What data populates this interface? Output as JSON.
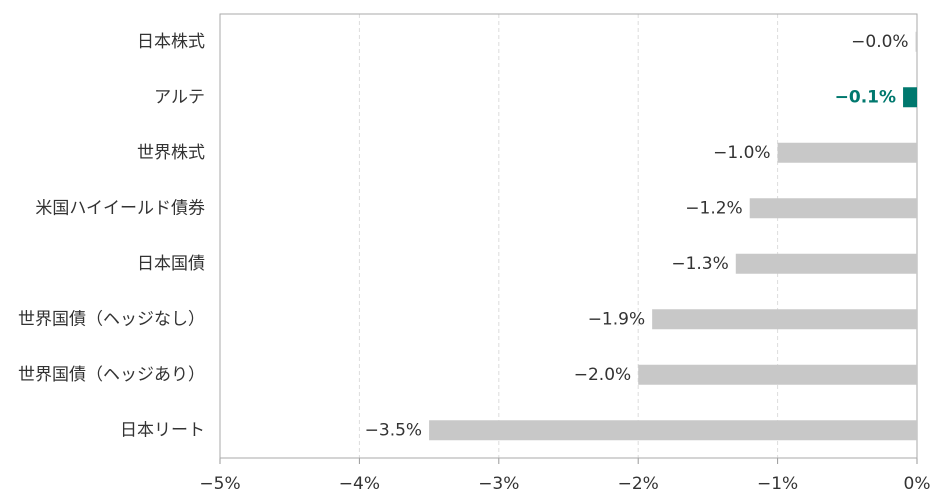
{
  "chart_data": {
    "type": "barh",
    "categories": [
      "日本株式",
      "アルテ",
      "世界株式",
      "米国ハイイールド債券",
      "日本国債",
      "世界国債（ヘッジなし）",
      "世界国債（ヘッジあり）",
      "日本リート"
    ],
    "values": [
      -0.01,
      -0.1,
      -1.0,
      -1.2,
      -1.3,
      -1.9,
      -2.0,
      -3.5
    ],
    "value_labels": [
      "−0.0%",
      "−0.1%",
      "−1.0%",
      "−1.2%",
      "−1.3%",
      "−1.9%",
      "−2.0%",
      "−3.5%"
    ],
    "color": "#c8c8c8",
    "colors": [
      "#c8c8c8",
      "#00786e",
      "#c8c8c8",
      "#c8c8c8",
      "#c8c8c8",
      "#c8c8c8",
      "#c8c8c8",
      "#c8c8c8"
    ],
    "xlim": [
      -5,
      0
    ],
    "xticks": [
      {
        "value": -5,
        "label": "−5%"
      },
      {
        "value": -4,
        "label": "−4%"
      },
      {
        "value": -3,
        "label": "−3%"
      },
      {
        "value": -2,
        "label": "−2%"
      },
      {
        "value": -1,
        "label": "−1%"
      },
      {
        "value": 0,
        "label": "0%"
      }
    ],
    "grid": true
  }
}
